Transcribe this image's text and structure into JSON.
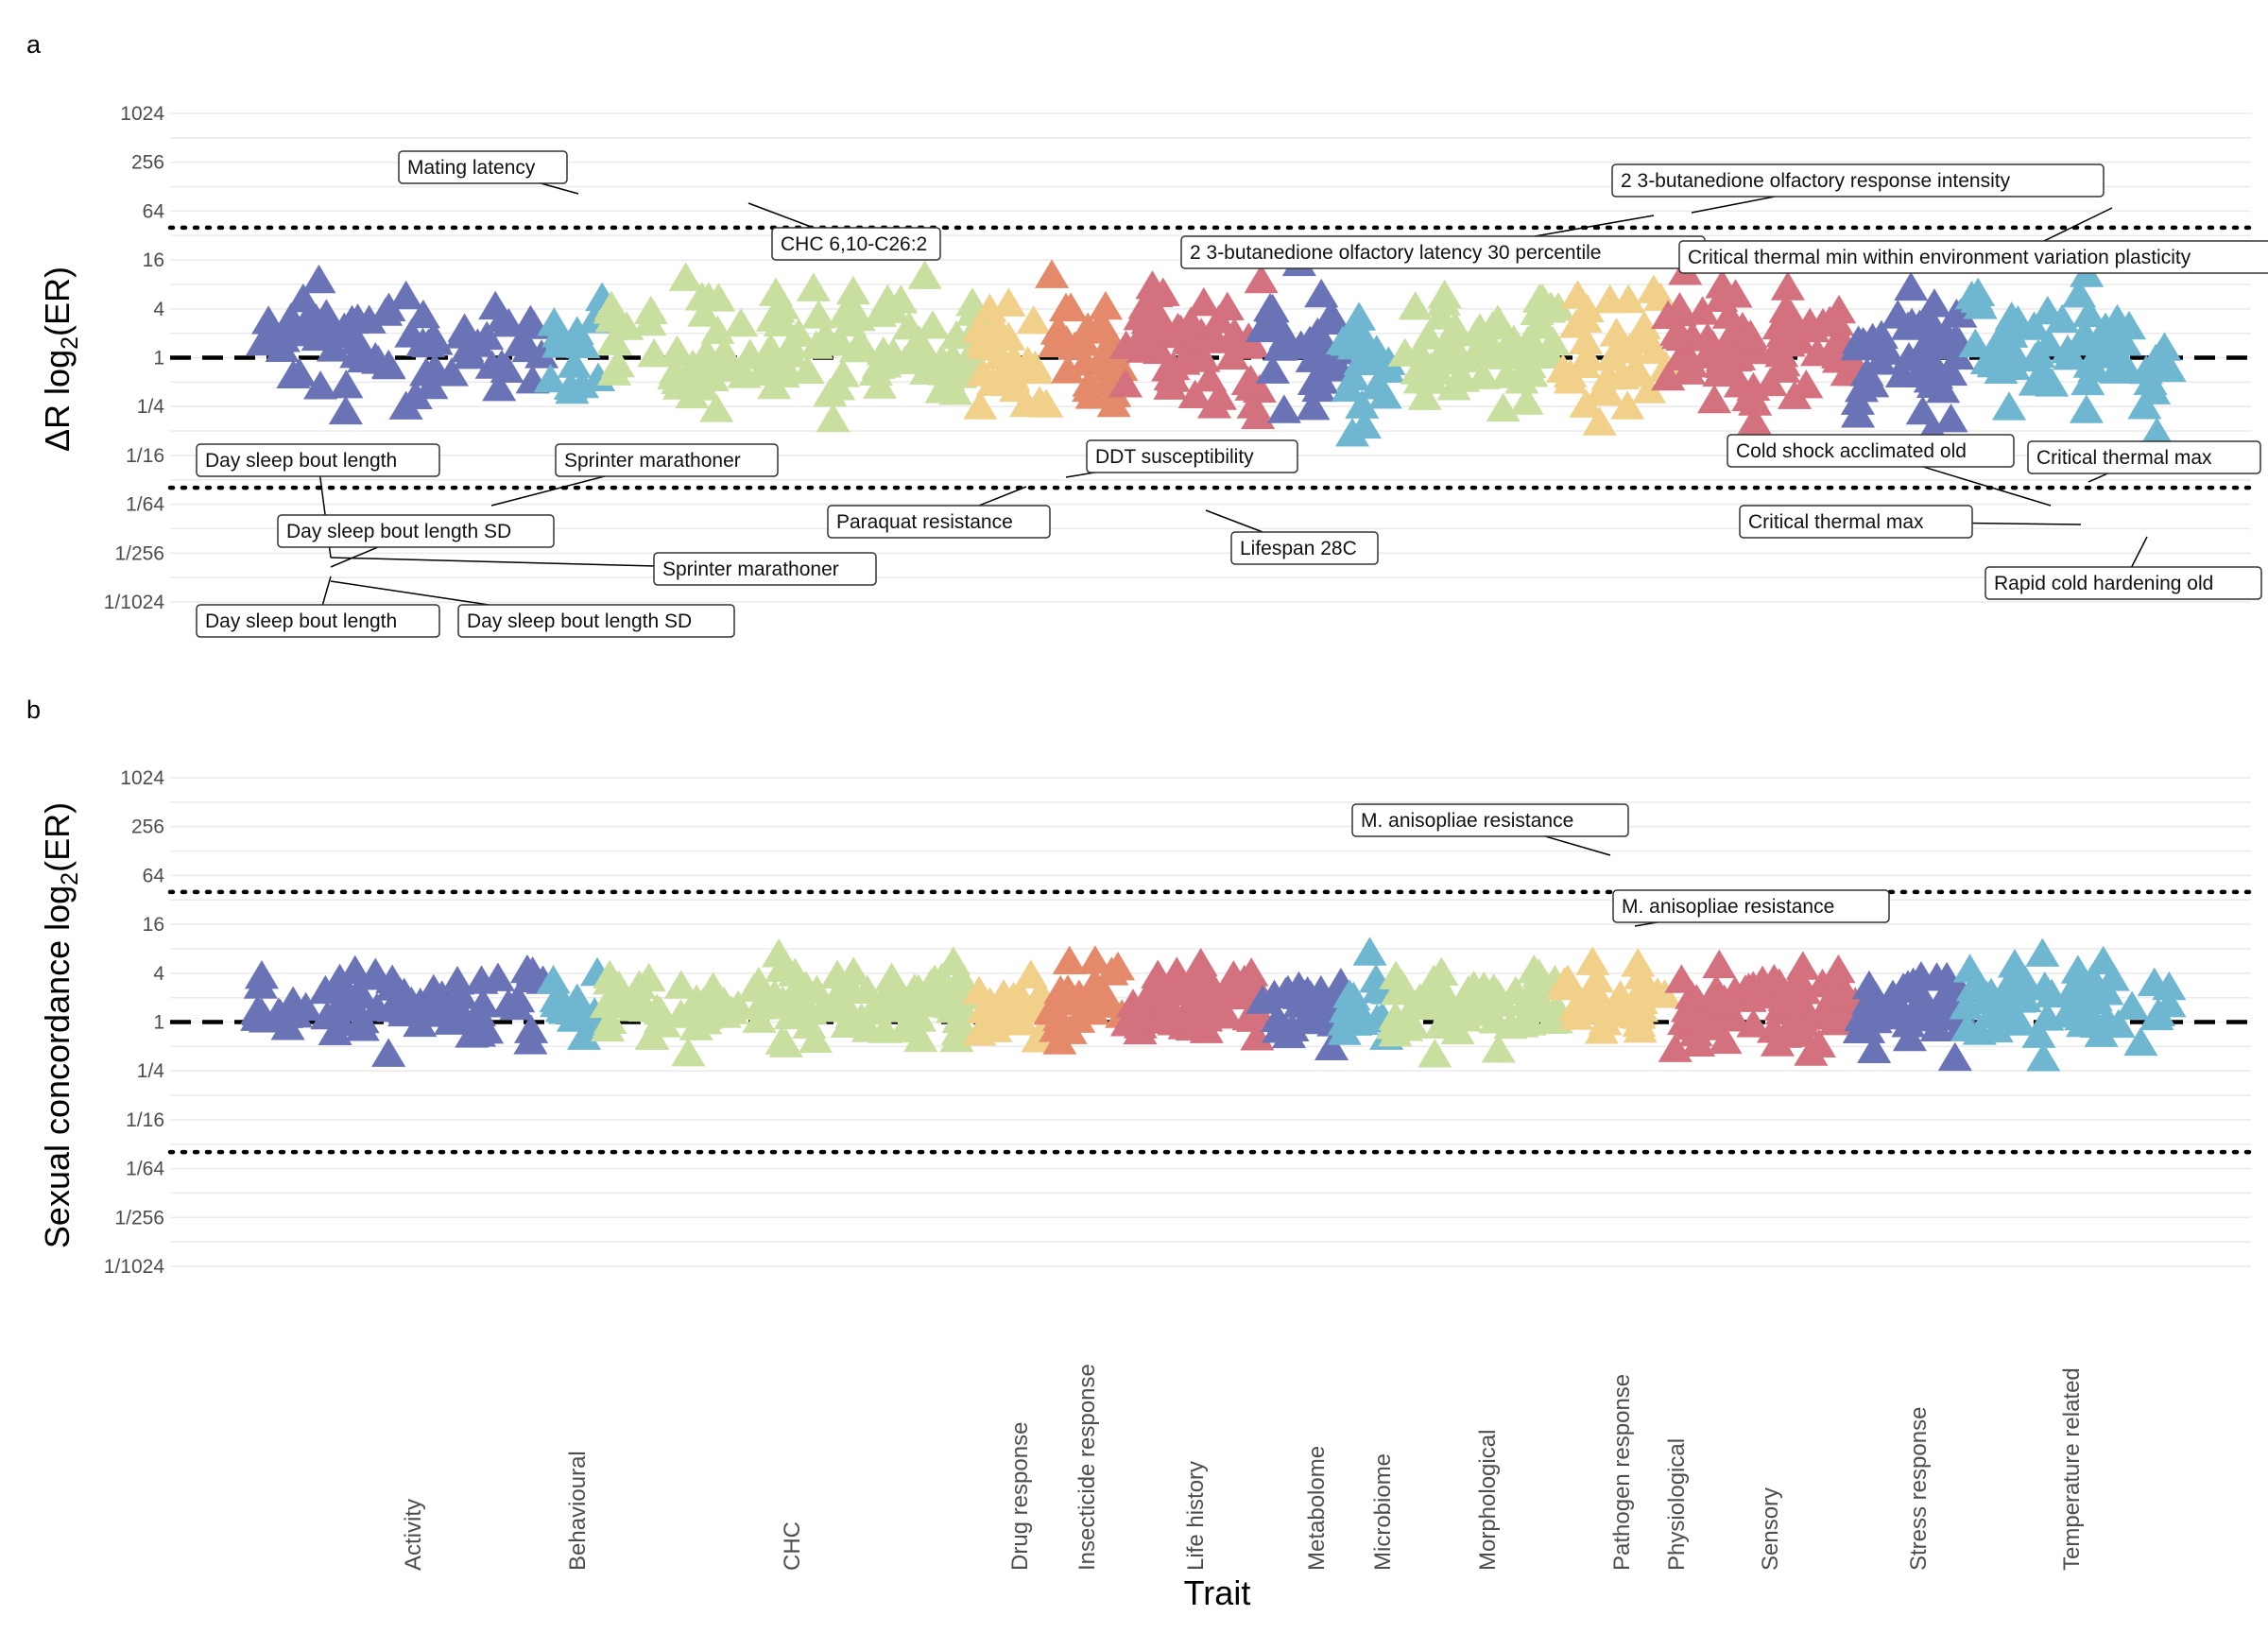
{
  "colors": {
    "Activity": "#6a73b6",
    "Behavioural": "#6fb7d0",
    "CHC": "#c8dfa0",
    "Drug response": "#f1d08a",
    "Insecticide response": "#e48a6a",
    "Life history": "#d4717e",
    "Metabolome": "#6a73b6",
    "Microbiome": "#6fb7d0",
    "Morphological": "#c8dfa0",
    "Pathogen response": "#f1d08a",
    "Physiological": "#d4717e",
    "Sensory": "#d4717e",
    "Stress response": "#6a73b6",
    "Temperature related": "#6fb7d0"
  },
  "chart_data": [
    {
      "panel": "a",
      "type": "scatter",
      "marker": "triangle",
      "ylabel_main": "ΔR log",
      "ylabel_sub": "2",
      "ylabel_tail": "(ER)",
      "xlabel": "Trait",
      "y_scale": "log2",
      "yticks": [
        "1024",
        "256",
        "64",
        "16",
        "4",
        "1",
        "1/4",
        "1/16",
        "1/64",
        "1/256",
        "1/1024"
      ],
      "reference_lines": {
        "dashed": 1,
        "dotted": [
          0.025,
          40
        ]
      },
      "annotations": [
        {
          "label": "Mating latency",
          "category": "Behavioural",
          "value": 128
        },
        {
          "label": "CHC 6,10-C26:2",
          "category": "CHC",
          "value": 70
        },
        {
          "label": "2 3-butanedione olfactory response intensity",
          "category": "Sensory",
          "value": 60
        },
        {
          "label": "2 3-butanedione olfactory latency 30 percentile",
          "category": "Sensory",
          "value": 60
        },
        {
          "label": "Critical thermal min within environment variation plasticity",
          "category": "Temperature related",
          "value": 80
        },
        {
          "label": "Day sleep bout length",
          "category": "Activity",
          "value": 0.002
        },
        {
          "label": "Sprinter marathoner",
          "category": "Activity",
          "value": 0.025
        },
        {
          "label": "Day sleep bout length SD",
          "category": "Activity",
          "value": 0.0022
        },
        {
          "label": "Sprinter marathoner",
          "category": "Activity",
          "value": 0.005
        },
        {
          "label": "Day sleep bout length",
          "category": "Activity",
          "value": 0.0012
        },
        {
          "label": "Day sleep bout length SD",
          "category": "Activity",
          "value": 0.0015
        },
        {
          "label": "DDT susceptibility",
          "category": "Insecticide response",
          "value": 0.025
        },
        {
          "label": "Paraquat resistance",
          "category": "Drug response",
          "value": 0.02
        },
        {
          "label": "Lifespan 28C",
          "category": "Life history",
          "value": 0.012
        },
        {
          "label": "Cold shock acclimated old",
          "category": "Temperature related",
          "value": 0.016
        },
        {
          "label": "Critical thermal max",
          "category": "Temperature related",
          "value": 0.025
        },
        {
          "label": "Critical thermal max",
          "category": "Temperature related",
          "value": 0.009
        },
        {
          "label": "Rapid cold hardening old",
          "category": "Temperature related",
          "value": 0.007
        }
      ]
    },
    {
      "panel": "b",
      "type": "scatter",
      "marker": "triangle",
      "ylabel_main": "Sexual concordance log",
      "ylabel_sub": "2",
      "ylabel_tail": "(ER)",
      "y_scale": "log2",
      "yticks": [
        "1024",
        "256",
        "64",
        "16",
        "4",
        "1",
        "1/4",
        "1/16",
        "1/64",
        "1/256",
        "1/1024"
      ],
      "reference_lines": {
        "dashed": 1,
        "dotted": [
          0.025,
          40
        ]
      },
      "annotations": [
        {
          "label": "M. anisopliae resistance",
          "category": "Pathogen response",
          "value": 100
        },
        {
          "label": "M. anisopliae resistance",
          "category": "Pathogen response",
          "value": 12
        }
      ]
    }
  ],
  "x_categories": [
    "Activity",
    "Behavioural",
    "CHC",
    "Drug response",
    "Insecticide response",
    "Life history",
    "Metabolome",
    "Microbiome",
    "Morphological",
    "Pathogen response",
    "Physiological",
    "Sensory",
    "Stress response",
    "Temperature related"
  ],
  "panels": {
    "a": "a",
    "b": "b"
  }
}
